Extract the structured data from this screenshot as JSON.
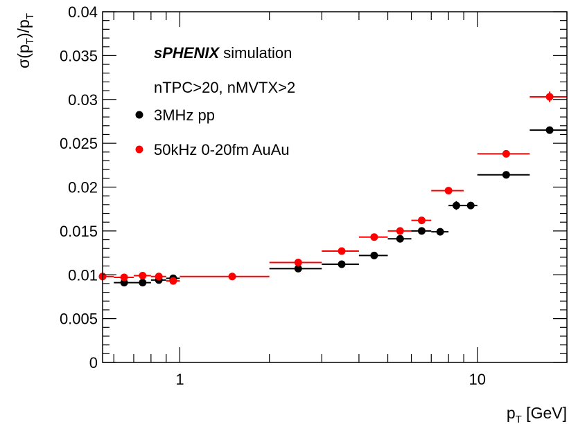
{
  "chart_data": {
    "type": "scatter",
    "x_scale": "log",
    "xlim": [
      0.55,
      20
    ],
    "ylim": [
      0,
      0.04
    ],
    "xlabel_main": "p",
    "xlabel_sub": "T",
    "xlabel_unit": " [GeV]",
    "ylabel_parts": [
      "σ(p",
      "T",
      ")/p",
      "T"
    ],
    "x_tick_labels": [
      {
        "value": 1,
        "label": "1"
      },
      {
        "value": 10,
        "label": "10"
      }
    ],
    "y_tick_labels": [
      {
        "value": 0,
        "label": "0"
      },
      {
        "value": 0.005,
        "label": "0.005"
      },
      {
        "value": 0.01,
        "label": "0.01"
      },
      {
        "value": 0.015,
        "label": "0.015"
      },
      {
        "value": 0.02,
        "label": "0.02"
      },
      {
        "value": 0.025,
        "label": "0.025"
      },
      {
        "value": 0.03,
        "label": "0.03"
      },
      {
        "value": 0.035,
        "label": "0.035"
      },
      {
        "value": 0.04,
        "label": "0.04"
      }
    ],
    "annotation_bold": "sPHENIX",
    "annotation_rest": " simulation",
    "annotation_line2": "nTPC>20, nMVTX>2",
    "legend_placement": "top-left",
    "series": [
      {
        "name": "3MHz pp",
        "color": "#000000",
        "points": [
          {
            "x": 0.65,
            "xlo": 0.6,
            "xhi": 0.7,
            "y": 0.0091,
            "yerr": 0.0002
          },
          {
            "x": 0.75,
            "xlo": 0.7,
            "xhi": 0.8,
            "y": 0.0091,
            "yerr": 0.0002
          },
          {
            "x": 0.85,
            "xlo": 0.8,
            "xhi": 0.9,
            "y": 0.0094,
            "yerr": 0.0002
          },
          {
            "x": 0.95,
            "xlo": 0.9,
            "xhi": 1.0,
            "y": 0.0096,
            "yerr": 0.0002
          },
          {
            "x": 2.5,
            "xlo": 2.0,
            "xhi": 3.0,
            "y": 0.0107,
            "yerr": 0.0002
          },
          {
            "x": 3.5,
            "xlo": 3.0,
            "xhi": 4.0,
            "y": 0.0112,
            "yerr": 0.0002
          },
          {
            "x": 4.5,
            "xlo": 4.0,
            "xhi": 5.0,
            "y": 0.0122,
            "yerr": 0.0002
          },
          {
            "x": 5.5,
            "xlo": 5.0,
            "xhi": 6.0,
            "y": 0.0141,
            "yerr": 0.0002
          },
          {
            "x": 6.5,
            "xlo": 6.0,
            "xhi": 7.0,
            "y": 0.015,
            "yerr": 0.0002
          },
          {
            "x": 7.5,
            "xlo": 7.0,
            "xhi": 8.0,
            "y": 0.0149,
            "yerr": 0.0002
          },
          {
            "x": 8.5,
            "xlo": 8.0,
            "xhi": 9.0,
            "y": 0.0179,
            "yerr": 0.0005
          },
          {
            "x": 9.5,
            "xlo": 9.0,
            "xhi": 10.0,
            "y": 0.0179,
            "yerr": 0.0004
          },
          {
            "x": 12.5,
            "xlo": 10.0,
            "xhi": 15.0,
            "y": 0.0214,
            "yerr": 0.0002
          },
          {
            "x": 17.5,
            "xlo": 15.0,
            "xhi": 20.0,
            "y": 0.0265,
            "yerr": 0.0003
          }
        ]
      },
      {
        "name": "50kHz 0-20fm AuAu",
        "color": "#ff0000",
        "points": [
          {
            "x": 0.55,
            "xlo": 0.5,
            "xhi": 0.6,
            "y": 0.0098,
            "yerr": 0.0002
          },
          {
            "x": 0.65,
            "xlo": 0.6,
            "xhi": 0.7,
            "y": 0.0097,
            "yerr": 0.0002
          },
          {
            "x": 0.75,
            "xlo": 0.7,
            "xhi": 0.8,
            "y": 0.0099,
            "yerr": 0.0002
          },
          {
            "x": 0.85,
            "xlo": 0.8,
            "xhi": 0.9,
            "y": 0.0098,
            "yerr": 0.0002
          },
          {
            "x": 0.95,
            "xlo": 0.9,
            "xhi": 1.0,
            "y": 0.0093,
            "yerr": 0.0002
          },
          {
            "x": 1.5,
            "xlo": 1.0,
            "xhi": 2.0,
            "y": 0.0098,
            "yerr": 0.0002
          },
          {
            "x": 2.5,
            "xlo": 2.0,
            "xhi": 3.0,
            "y": 0.0114,
            "yerr": 0.0002
          },
          {
            "x": 3.5,
            "xlo": 3.0,
            "xhi": 4.0,
            "y": 0.0127,
            "yerr": 0.0002
          },
          {
            "x": 4.5,
            "xlo": 4.0,
            "xhi": 5.0,
            "y": 0.0143,
            "yerr": 0.0002
          },
          {
            "x": 5.5,
            "xlo": 5.0,
            "xhi": 6.0,
            "y": 0.015,
            "yerr": 0.0002
          },
          {
            "x": 6.5,
            "xlo": 6.0,
            "xhi": 7.0,
            "y": 0.0162,
            "yerr": 0.0002
          },
          {
            "x": 8.0,
            "xlo": 7.0,
            "xhi": 9.0,
            "y": 0.0196,
            "yerr": 0.0003
          },
          {
            "x": 12.5,
            "xlo": 10.0,
            "xhi": 15.0,
            "y": 0.0238,
            "yerr": 0.0003
          },
          {
            "x": 17.5,
            "xlo": 15.0,
            "xhi": 20.0,
            "y": 0.0303,
            "yerr": 0.0006
          }
        ]
      }
    ]
  }
}
